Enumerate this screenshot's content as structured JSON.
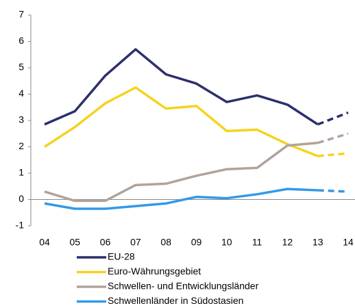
{
  "chart_data": {
    "type": "line",
    "categories": [
      "04",
      "05",
      "06",
      "07",
      "08",
      "09",
      "10",
      "11",
      "12",
      "13",
      "14"
    ],
    "dashed_from": "13",
    "series": [
      {
        "name": "EU-28",
        "color": "#2b2f6b",
        "values": [
          2.85,
          3.35,
          4.7,
          5.7,
          4.75,
          4.4,
          3.7,
          3.95,
          3.6,
          2.85,
          3.3
        ]
      },
      {
        "name": "Euro-Währungsgebiet",
        "color": "#f5d31f",
        "values": [
          2.0,
          2.75,
          3.65,
          4.25,
          3.45,
          3.55,
          2.6,
          2.65,
          2.1,
          1.65,
          1.75
        ]
      },
      {
        "name": "Schwellen- und Entwicklungsländer",
        "color": "#b0a39b",
        "values": [
          0.3,
          -0.05,
          -0.05,
          0.55,
          0.6,
          0.9,
          1.15,
          1.2,
          2.05,
          2.15,
          2.5
        ]
      },
      {
        "name": "Schwellenländer in Südostasien",
        "color": "#3399e6",
        "values": [
          -0.15,
          -0.35,
          -0.35,
          -0.25,
          -0.15,
          0.1,
          0.05,
          0.2,
          0.4,
          0.35,
          0.3
        ]
      }
    ],
    "ylim": [
      -1,
      7
    ],
    "yticks": [
      -1,
      0,
      1,
      2,
      3,
      4,
      5,
      6,
      7
    ],
    "grid": false
  }
}
